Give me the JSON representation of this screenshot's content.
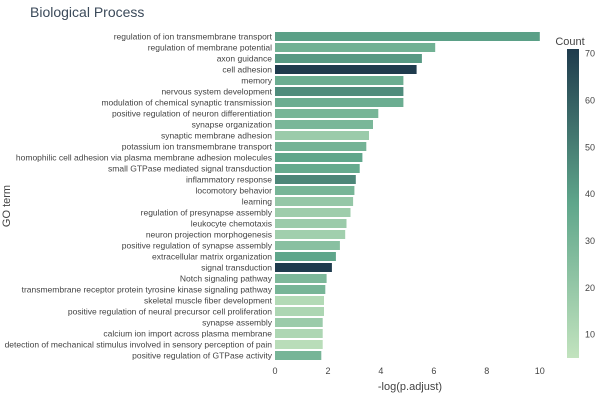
{
  "chart_data": {
    "type": "bar",
    "orientation": "horizontal",
    "title": "Biological Process",
    "xlabel": "-log(p.adjust)",
    "ylabel": "GO term",
    "xlim": [
      0,
      10.5
    ],
    "xticks": [
      0,
      2,
      4,
      6,
      8,
      10
    ],
    "grid": false,
    "colorbar": {
      "title": "Count",
      "range": [
        5,
        71
      ],
      "ticks": [
        10,
        20,
        30,
        40,
        50,
        60,
        70
      ],
      "color_low": "#c2e3be",
      "color_mid": "#5fa68b",
      "color_high": "#1f3b4d"
    },
    "bars": [
      {
        "term": "regulation of ion transmembrane transport",
        "value": 10.0,
        "count": 40
      },
      {
        "term": "regulation of membrane potential",
        "value": 6.05,
        "count": 32
      },
      {
        "term": "axon guidance",
        "value": 5.55,
        "count": 42
      },
      {
        "term": "cell adhesion",
        "value": 5.35,
        "count": 71
      },
      {
        "term": "memory",
        "value": 4.85,
        "count": 34
      },
      {
        "term": "nervous system development",
        "value": 4.85,
        "count": 46
      },
      {
        "term": "modulation of chemical synaptic transmission",
        "value": 4.85,
        "count": 34
      },
      {
        "term": "positive regulation of neuron differentiation",
        "value": 3.9,
        "count": 30
      },
      {
        "term": "synapse organization",
        "value": 3.7,
        "count": 29
      },
      {
        "term": "synaptic membrane adhesion",
        "value": 3.55,
        "count": 18
      },
      {
        "term": "potassium ion transmembrane transport",
        "value": 3.45,
        "count": 31
      },
      {
        "term": "homophilic cell adhesion via plasma membrane adhesion molecules",
        "value": 3.3,
        "count": 38
      },
      {
        "term": "small GTPase mediated signal transduction",
        "value": 3.2,
        "count": 36
      },
      {
        "term": "inflammatory response",
        "value": 3.05,
        "count": 48
      },
      {
        "term": "locomotory behavior",
        "value": 3.0,
        "count": 30
      },
      {
        "term": "learning",
        "value": 2.95,
        "count": 20
      },
      {
        "term": "regulation of presynapse assembly",
        "value": 2.85,
        "count": 17
      },
      {
        "term": "leukocyte chemotaxis",
        "value": 2.7,
        "count": 18
      },
      {
        "term": "neuron projection morphogenesis",
        "value": 2.65,
        "count": 16
      },
      {
        "term": "positive regulation of synapse assembly",
        "value": 2.45,
        "count": 24
      },
      {
        "term": "extracellular matrix organization",
        "value": 2.3,
        "count": 38
      },
      {
        "term": "signal transduction",
        "value": 2.15,
        "count": 72
      },
      {
        "term": "Notch signaling pathway",
        "value": 1.95,
        "count": 28
      },
      {
        "term": "transmembrane receptor protein tyrosine kinase signaling pathway",
        "value": 1.9,
        "count": 30
      },
      {
        "term": "skeletal muscle fiber development",
        "value": 1.85,
        "count": 10
      },
      {
        "term": "positive regulation of neural precursor cell proliferation",
        "value": 1.85,
        "count": 12
      },
      {
        "term": "synapse assembly",
        "value": 1.8,
        "count": 18
      },
      {
        "term": "calcium ion import across plasma membrane",
        "value": 1.8,
        "count": 12
      },
      {
        "term": "detection of mechanical stimulus involved in sensory perception of pain",
        "value": 1.8,
        "count": 8
      },
      {
        "term": "positive regulation of GTPase activity",
        "value": 1.75,
        "count": 30
      }
    ]
  }
}
